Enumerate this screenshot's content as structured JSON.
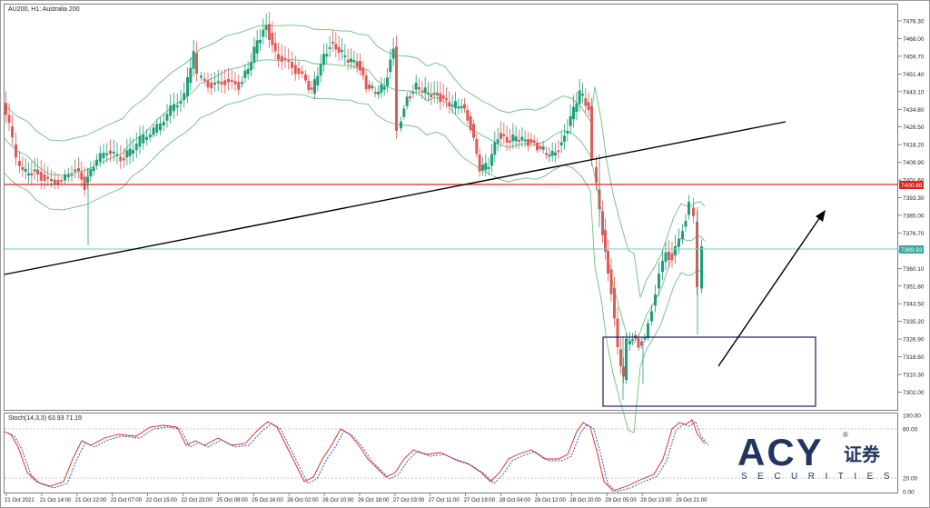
{
  "chart": {
    "title": "AU200, H1:  Australia 200",
    "indicator_title": "Stoch(14,3,3) 63.93 71.19",
    "price_axis": [
      "7476.30",
      "7468.00",
      "7459.70",
      "7451.40",
      "7443.10",
      "7434.80",
      "7426.50",
      "7418.20",
      "7409.90",
      "7401.60",
      "7393.30",
      "7385.00",
      "7376.70",
      "7368.40",
      "7360.10",
      "7351.80",
      "7343.50",
      "7335.20",
      "7326.90",
      "7318.60",
      "7310.30",
      "7302.00"
    ],
    "price_tags": {
      "resistance": "7400.88",
      "current": "7369.93"
    },
    "indicator_axis": [
      "100.00",
      "80.00",
      "20.00",
      "0.00"
    ],
    "time_axis": [
      "21 Oct 2021",
      "21 Oct 14:00",
      "21 Oct 22:00",
      "22 Oct 07:00",
      "22 Oct 15:00",
      "22 Oct 23:00",
      "25 Oct 08:00",
      "25 Oct 16:00",
      "26 Oct 02:00",
      "26 Oct 10:00",
      "26 Oct 18:00",
      "27 Oct 03:00",
      "27 Oct 11:00",
      "27 Oct 19:00",
      "28 Oct 04:00",
      "28 Oct 12:00",
      "28 Oct 20:00",
      "29 Oct 05:00",
      "29 Oct 13:00",
      "29 Oct 21:00"
    ],
    "colors": {
      "bull": "#1f9e7a",
      "bear": "#e05a5a",
      "band": "#6fbf7f",
      "resistance": "#e02020",
      "current": "#7fc9c2",
      "trendline": "#000000",
      "box": "#1c1c5e"
    }
  },
  "logo": {
    "brand": "ACY",
    "chinese": "证券",
    "sub": "SECURITIES",
    "registered": "®"
  }
}
